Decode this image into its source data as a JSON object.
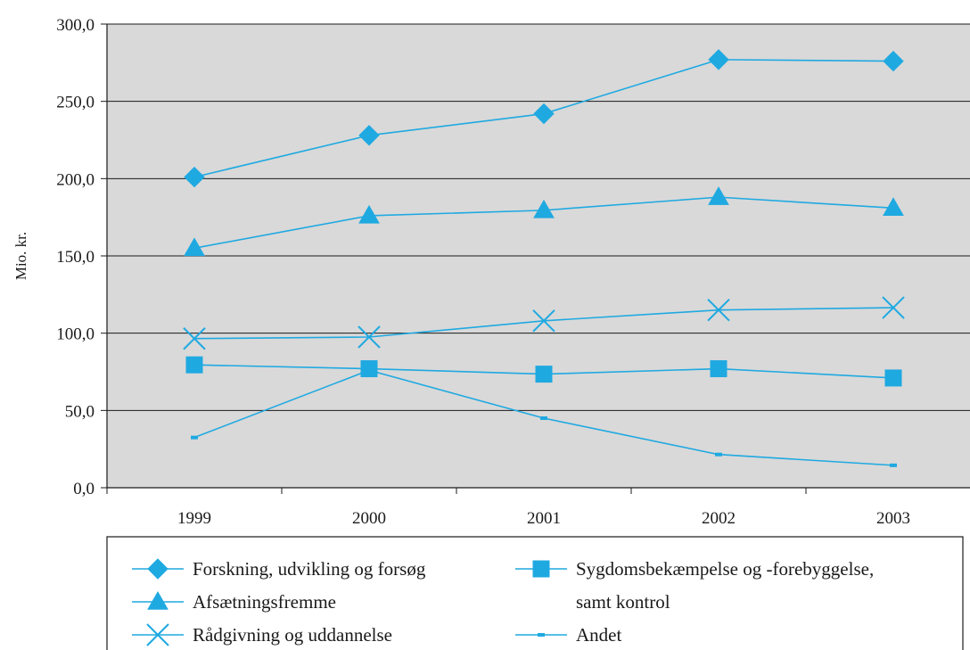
{
  "chart_data": {
    "type": "line",
    "title": "",
    "xlabel": "",
    "ylabel": "Mio. kr.",
    "categories": [
      "1999",
      "2000",
      "2001",
      "2002",
      "2003"
    ],
    "ylim": [
      0,
      300
    ],
    "yticks": [
      "0,0",
      "50,0",
      "100,0",
      "150,0",
      "200,0",
      "250,0",
      "300,0"
    ],
    "grid": true,
    "legend_position": "bottom",
    "line_color": "#1fa9e1",
    "plot_background": "#d9d9d9",
    "series": [
      {
        "name": "Forskning, udvikling og forsøg",
        "marker": "diamond",
        "values": [
          201,
          228,
          242,
          277,
          276
        ]
      },
      {
        "name": "Afsætningsfremme",
        "marker": "triangle",
        "values": [
          155,
          176,
          179.5,
          188,
          181
        ]
      },
      {
        "name": "Rådgivning og uddannelse",
        "marker": "x",
        "values": [
          96.5,
          97.5,
          108,
          115,
          116.5
        ]
      },
      {
        "name": "Sygdomsbekæmpelse og -forebyggelse, samt kontrol",
        "legend_lines": [
          "Sygdomsbekæmpelse og -forebyggelse,",
          "samt kontrol"
        ],
        "marker": "square",
        "values": [
          79.5,
          77,
          73.5,
          77,
          71
        ]
      },
      {
        "name": "Andet",
        "marker": "dash",
        "values": [
          32.5,
          76,
          45,
          21.5,
          14.5
        ]
      }
    ]
  }
}
